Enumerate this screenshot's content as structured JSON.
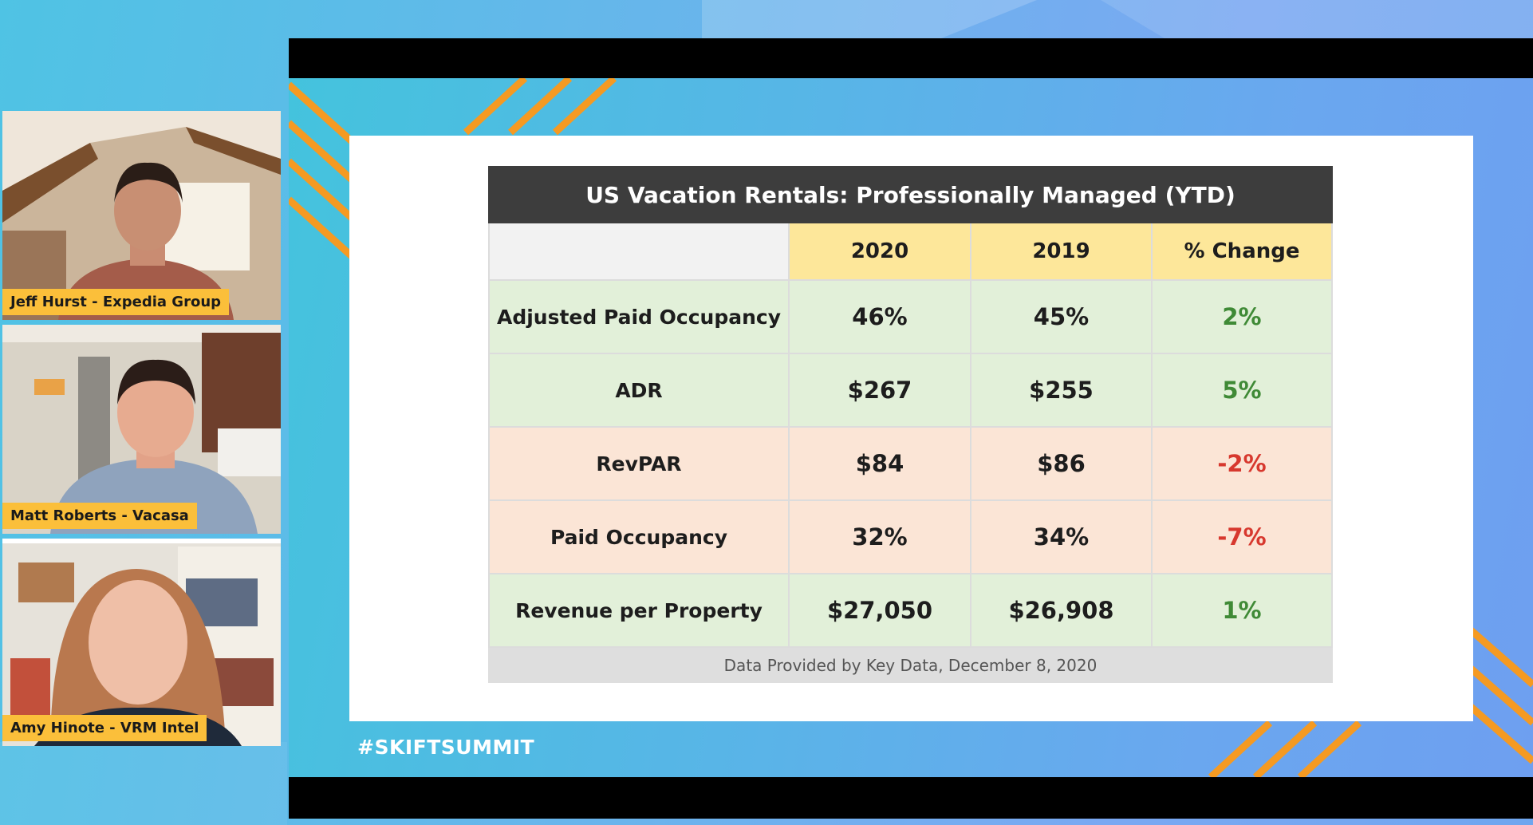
{
  "presenters": [
    {
      "name": "Jeff Hurst - Expedia Group"
    },
    {
      "name": "Matt Roberts - Vacasa"
    },
    {
      "name": "Amy Hinote - VRM Intel"
    }
  ],
  "slide": {
    "hashtag": "#SKIFTSUMMIT",
    "table": {
      "title": "US Vacation Rentals: Professionally Managed (YTD)",
      "headers": [
        "",
        "2020",
        "2019",
        "% Change"
      ],
      "rows": [
        {
          "label": "Adjusted Paid Occupancy",
          "v2020": "46%",
          "v2019": "45%",
          "change": "2%"
        },
        {
          "label": "ADR",
          "v2020": "$267",
          "v2019": "$255",
          "change": "5%"
        },
        {
          "label": "RevPAR",
          "v2020": "$84",
          "v2019": "$86",
          "change": "-2%"
        },
        {
          "label": "Paid Occupancy",
          "v2020": "32%",
          "v2019": "34%",
          "change": "-7%"
        },
        {
          "label": "Revenue per Property",
          "v2020": "$27,050",
          "v2019": "$26,908",
          "change": "1%"
        }
      ],
      "footer": "Data Provided by Key Data, December 8, 2020"
    }
  },
  "colors": {
    "name_tag": "#fbbf3a",
    "title_bar": "#3d3d3d",
    "header_fill": "#fde79a",
    "positive_row": "#e2f0d9",
    "negative_row": "#fbe5d6",
    "positive_text": "#3f8a36",
    "negative_text": "#d7382e",
    "accent_stripes": "#f59a22"
  }
}
